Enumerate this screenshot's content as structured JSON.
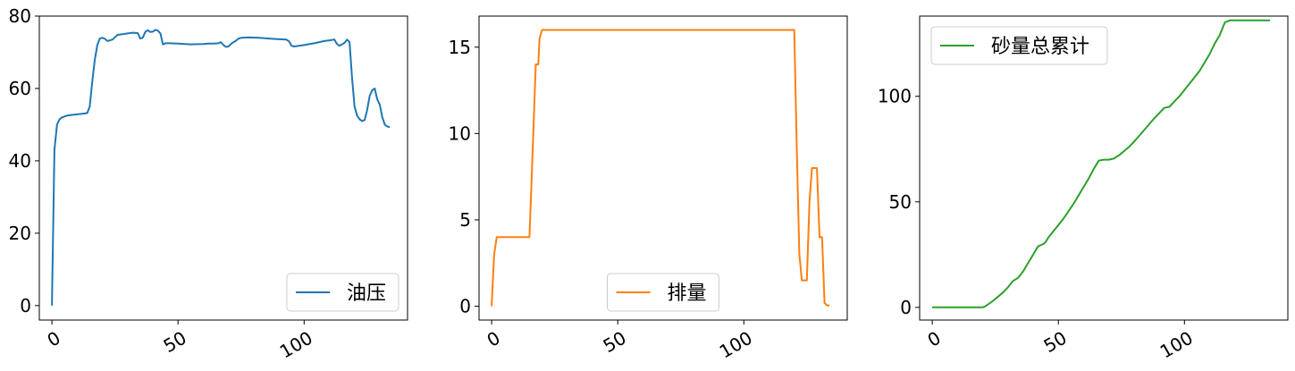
{
  "chart_data": [
    {
      "type": "line",
      "title": "",
      "xlabel": "",
      "ylabel": "",
      "xlim": [
        -5,
        141
      ],
      "ylim": [
        -4,
        80
      ],
      "xticks": [
        0,
        50,
        100
      ],
      "xtick_labels": [
        "0",
        "50",
        "100"
      ],
      "yticks": [
        0,
        20,
        40,
        60,
        80
      ],
      "ytick_labels": [
        "0",
        "20",
        "40",
        "60",
        "80"
      ],
      "legend_position": "lower-right",
      "series": [
        {
          "name": "油压",
          "color": "#1f77b4",
          "x": [
            0,
            1,
            2,
            3,
            4,
            6,
            8,
            12,
            14,
            15,
            16,
            17,
            18,
            19,
            20,
            21,
            22,
            24,
            26,
            28,
            30,
            32,
            34,
            35,
            36,
            37,
            38,
            39,
            40,
            41,
            42,
            43,
            44,
            45,
            46,
            47,
            50,
            55,
            60,
            62,
            64,
            66,
            67,
            68,
            69,
            70,
            71,
            72,
            73,
            74,
            75,
            78,
            82,
            86,
            90,
            93,
            94,
            95,
            96,
            100,
            104,
            106,
            108,
            110,
            112,
            113,
            114,
            115,
            116,
            117,
            118,
            119,
            120,
            121,
            122,
            123,
            124,
            125,
            126,
            127,
            128,
            129,
            130,
            131,
            132,
            133,
            134
          ],
          "y": [
            0,
            43,
            50,
            51.5,
            52,
            52.5,
            52.7,
            53,
            53.2,
            55,
            62,
            68,
            72,
            73.8,
            74,
            73.7,
            73.1,
            73.5,
            74.8,
            75,
            75.2,
            75.4,
            75.3,
            73.8,
            74,
            75.6,
            76.1,
            75.6,
            75.7,
            76.2,
            76,
            75.2,
            72.2,
            72.5,
            72.5,
            72.5,
            72.4,
            72.2,
            72.3,
            72.4,
            72.4,
            72.5,
            72.8,
            72,
            71.5,
            71.6,
            72.3,
            72.8,
            73.2,
            73.8,
            74,
            74.1,
            74,
            73.8,
            73.6,
            73.5,
            73,
            71.8,
            71.6,
            72,
            72.5,
            72.8,
            73.1,
            73.3,
            73.5,
            72.3,
            71.8,
            72.2,
            72.6,
            73.5,
            72.8,
            63,
            55,
            52.5,
            51.5,
            51,
            51.3,
            54,
            58,
            59.5,
            60,
            57,
            55.5,
            52,
            50,
            49.5,
            49.3
          ]
        }
      ]
    },
    {
      "type": "line",
      "title": "",
      "xlabel": "",
      "ylabel": "",
      "xlim": [
        -5,
        141
      ],
      "ylim": [
        -0.8,
        16.8
      ],
      "xticks": [
        0,
        50,
        100
      ],
      "xtick_labels": [
        "0",
        "50",
        "100"
      ],
      "yticks": [
        0,
        5,
        10,
        15
      ],
      "ytick_labels": [
        "0",
        "5",
        "10",
        "15"
      ],
      "legend_position": "lower-center",
      "series": [
        {
          "name": "排量",
          "color": "#ff7f0e",
          "x": [
            0,
            1,
            2,
            3,
            14,
            15,
            16,
            17,
            17.5,
            18,
            18.5,
            19,
            20,
            21,
            119,
            120,
            121,
            122,
            123,
            124,
            125,
            126,
            127,
            128,
            129,
            130,
            131,
            132,
            133,
            134
          ],
          "y": [
            0,
            3,
            4,
            4,
            4,
            4,
            8,
            12,
            14,
            14,
            14,
            15.5,
            16,
            16,
            16,
            16,
            9,
            3,
            1.5,
            1.5,
            1.5,
            6,
            8,
            8,
            8,
            4,
            4,
            0.2,
            0.05,
            0.05
          ]
        }
      ]
    },
    {
      "type": "line",
      "title": "",
      "xlabel": "",
      "ylabel": "",
      "xlim": [
        -5,
        141
      ],
      "ylim": [
        -6,
        138
      ],
      "xticks": [
        0,
        50,
        100
      ],
      "xtick_labels": [
        "0",
        "50",
        "100"
      ],
      "yticks": [
        0,
        50,
        100
      ],
      "ytick_labels": [
        "0",
        "50",
        "100"
      ],
      "legend_position": "upper-left",
      "series": [
        {
          "name": "砂量总累计",
          "color": "#2ca02c",
          "x": [
            0,
            20,
            21,
            24,
            28,
            30,
            32,
            34,
            36,
            38,
            40,
            42,
            44,
            45,
            46,
            48,
            50,
            52,
            54,
            56,
            58,
            60,
            62,
            64,
            66,
            68,
            70,
            72,
            74,
            76,
            78,
            80,
            84,
            88,
            90,
            92,
            94,
            96,
            98,
            100,
            102,
            104,
            106,
            108,
            110,
            112,
            114,
            116,
            118,
            120,
            125,
            130,
            134
          ],
          "y": [
            0,
            0,
            0.5,
            3,
            7,
            9.5,
            12.5,
            14,
            17,
            21,
            25,
            29,
            30,
            31,
            33,
            36,
            39,
            42,
            45.5,
            49,
            53,
            57,
            61,
            65.5,
            69.5,
            70,
            70,
            70.5,
            72,
            74,
            76,
            78.5,
            84,
            89.5,
            92,
            94.5,
            95,
            97.5,
            100,
            103,
            106,
            109,
            112,
            116,
            120,
            125,
            129,
            135,
            136,
            136,
            136,
            136,
            136
          ]
        }
      ]
    }
  ]
}
